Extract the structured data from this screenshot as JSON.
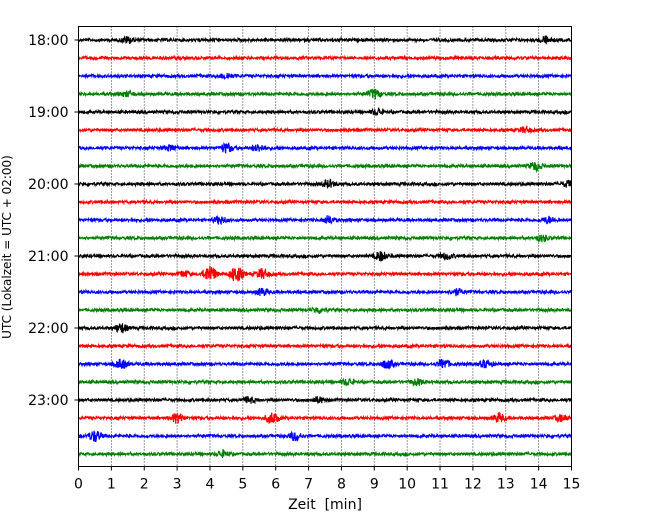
{
  "chart_data": {
    "type": "line",
    "title": "",
    "xlabel": "Zeit  [min]",
    "ylabel": "UTC (Lokalzeit = UTC + 02:00)",
    "xlim": [
      0,
      15
    ],
    "x_ticks": [
      "0",
      "1",
      "2",
      "3",
      "4",
      "5",
      "6",
      "7",
      "8",
      "9",
      "10",
      "11",
      "12",
      "13",
      "14",
      "15"
    ],
    "y_tick_labels": [
      "18:00",
      "19:00",
      "20:00",
      "21:00",
      "22:00",
      "23:00"
    ],
    "grid": "vertical dotted at each minute",
    "row_minutes": 15,
    "trace_colors": [
      "#000000",
      "#ff0000",
      "#0000ff",
      "#008000"
    ],
    "series": [
      {
        "start": "18:00",
        "color": "#000000",
        "events": [
          [
            1.5,
            1.4
          ],
          [
            14.2,
            1.5
          ]
        ]
      },
      {
        "start": "18:15",
        "color": "#ff0000",
        "events": []
      },
      {
        "start": "18:30",
        "color": "#0000ff",
        "events": [
          [
            4.5,
            1.3
          ]
        ]
      },
      {
        "start": "18:45",
        "color": "#008000",
        "events": [
          [
            9.0,
            2.0
          ],
          [
            1.5,
            1.2
          ]
        ]
      },
      {
        "start": "19:00",
        "color": "#000000",
        "events": [
          [
            9.1,
            1.3
          ]
        ]
      },
      {
        "start": "19:15",
        "color": "#ff0000",
        "events": [
          [
            13.6,
            1.3
          ]
        ]
      },
      {
        "start": "19:30",
        "color": "#0000ff",
        "events": [
          [
            4.5,
            2.0
          ],
          [
            5.5,
            1.4
          ],
          [
            2.8,
            1.2
          ]
        ]
      },
      {
        "start": "19:45",
        "color": "#008000",
        "events": [
          [
            13.9,
            1.8
          ]
        ]
      },
      {
        "start": "20:00",
        "color": "#000000",
        "events": [
          [
            7.6,
            1.6
          ],
          [
            14.9,
            1.3
          ]
        ]
      },
      {
        "start": "20:15",
        "color": "#ff0000",
        "events": []
      },
      {
        "start": "20:30",
        "color": "#0000ff",
        "events": [
          [
            4.3,
            1.6
          ],
          [
            7.6,
            1.6
          ],
          [
            14.3,
            1.4
          ]
        ]
      },
      {
        "start": "20:45",
        "color": "#008000",
        "events": [
          [
            14.1,
            1.3
          ]
        ]
      },
      {
        "start": "21:00",
        "color": "#000000",
        "events": [
          [
            9.2,
            2.0
          ],
          [
            11.2,
            1.3
          ]
        ]
      },
      {
        "start": "21:15",
        "color": "#ff0000",
        "events": [
          [
            4.0,
            3.8
          ],
          [
            4.8,
            3.6
          ],
          [
            5.6,
            2.2
          ],
          [
            3.2,
            1.3
          ]
        ]
      },
      {
        "start": "21:30",
        "color": "#0000ff",
        "events": [
          [
            5.6,
            1.5
          ],
          [
            11.5,
            1.3
          ]
        ]
      },
      {
        "start": "21:45",
        "color": "#008000",
        "events": [
          [
            7.3,
            1.2
          ]
        ]
      },
      {
        "start": "22:00",
        "color": "#000000",
        "events": [
          [
            1.3,
            2.0
          ]
        ]
      },
      {
        "start": "22:15",
        "color": "#ff0000",
        "events": []
      },
      {
        "start": "22:30",
        "color": "#0000ff",
        "events": [
          [
            1.3,
            2.0
          ],
          [
            9.4,
            1.8
          ],
          [
            11.1,
            2.0
          ],
          [
            12.4,
            1.6
          ]
        ]
      },
      {
        "start": "22:45",
        "color": "#008000",
        "events": [
          [
            8.2,
            1.4
          ],
          [
            10.3,
            1.3
          ]
        ]
      },
      {
        "start": "23:00",
        "color": "#000000",
        "events": [
          [
            5.2,
            1.3
          ],
          [
            7.3,
            1.2
          ]
        ]
      },
      {
        "start": "23:15",
        "color": "#ff0000",
        "events": [
          [
            3.0,
            2.0
          ],
          [
            5.9,
            2.4
          ],
          [
            12.8,
            2.0
          ],
          [
            14.7,
            1.4
          ]
        ]
      },
      {
        "start": "23:30",
        "color": "#0000ff",
        "events": [
          [
            0.5,
            2.4
          ],
          [
            6.6,
            1.9
          ]
        ]
      },
      {
        "start": "23:45",
        "color": "#008000",
        "events": [
          [
            4.4,
            1.3
          ]
        ]
      }
    ]
  }
}
